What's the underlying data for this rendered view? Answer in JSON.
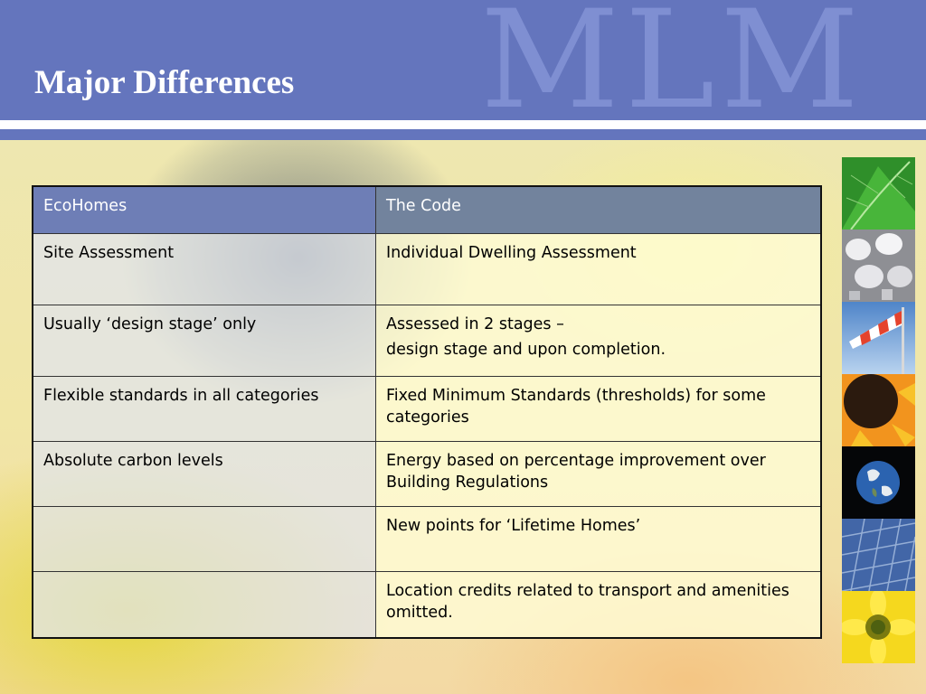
{
  "header": {
    "title": "Major Differences",
    "watermark": "MLM",
    "band_color": "#6475bd"
  },
  "table": {
    "headers": [
      "EcoHomes",
      "The Code"
    ],
    "rows": [
      {
        "ecohomes": "Site Assessment",
        "code": [
          "Individual Dwelling Assessment"
        ]
      },
      {
        "ecohomes": "Usually ‘design stage’ only",
        "code": [
          "Assessed in 2 stages –",
          "design stage and upon completion."
        ]
      },
      {
        "ecohomes": "Flexible standards in all categories",
        "code": [
          "Fixed Minimum Standards (thresholds) for some categories"
        ]
      },
      {
        "ecohomes": "Absolute carbon levels",
        "code": [
          "Energy based on percentage improvement over Building Regulations"
        ]
      },
      {
        "ecohomes": "",
        "code": [
          "New points for ‘Lifetime Homes’"
        ]
      },
      {
        "ecohomes": "",
        "code": [
          "Location credits related to transport and amenities omitted."
        ]
      }
    ]
  },
  "sidebar": {
    "images": [
      {
        "icon": "green-leaf-image"
      },
      {
        "icon": "light-bulbs-image"
      },
      {
        "icon": "windsock-image"
      },
      {
        "icon": "sunflower-image"
      },
      {
        "icon": "earth-image"
      },
      {
        "icon": "solar-panel-image"
      },
      {
        "icon": "yellow-flower-image"
      }
    ]
  }
}
